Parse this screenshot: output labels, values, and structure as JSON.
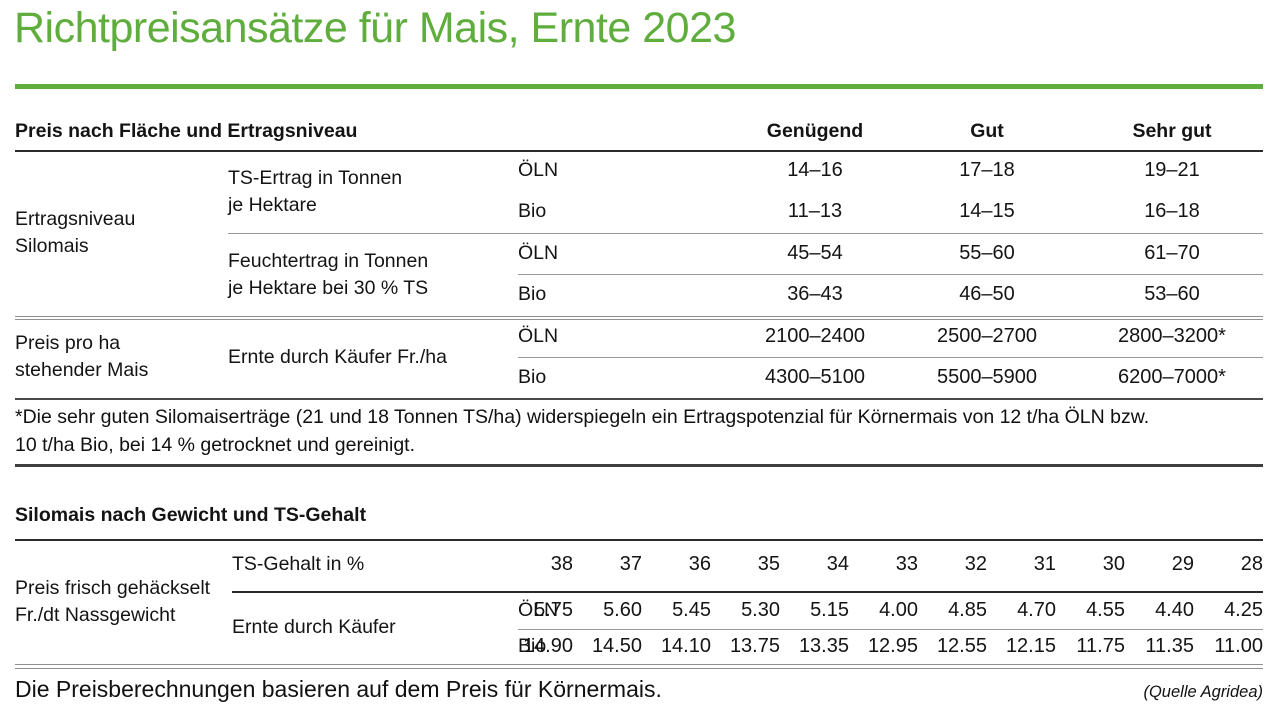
{
  "title": "Richtpreisansätze für Mais, Ernte 2023",
  "accent_color": "#5fad3d",
  "table1": {
    "header": "Preis nach Fläche und Ertragsniveau",
    "quality_headers": [
      "Genügend",
      "Gut",
      "Sehr gut"
    ],
    "groups": [
      {
        "row_label_lines": [
          "Ertragsniveau",
          "Silomais"
        ],
        "blocks": [
          {
            "measure_lines": [
              "TS-Ertrag in Tonnen",
              "je Hektare"
            ],
            "rows": [
              {
                "system": "ÖLN",
                "values": [
                  "14–16",
                  "17–18",
                  "19–21"
                ]
              },
              {
                "system": "Bio",
                "values": [
                  "11–13",
                  "14–15",
                  "16–18"
                ]
              }
            ]
          },
          {
            "measure_lines": [
              "Feuchtertrag in Tonnen",
              "je Hektare bei 30 % TS"
            ],
            "rows": [
              {
                "system": "ÖLN",
                "values": [
                  "45–54",
                  "55–60",
                  "61–70"
                ]
              },
              {
                "system": "Bio",
                "values": [
                  "36–43",
                  "46–50",
                  "53–60"
                ]
              }
            ]
          }
        ]
      },
      {
        "row_label_lines": [
          "Preis pro ha",
          "stehender Mais"
        ],
        "blocks": [
          {
            "measure_lines": [
              "Ernte durch Käufer Fr./ha"
            ],
            "rows": [
              {
                "system": "ÖLN",
                "values": [
                  "2100–2400",
                  "2500–2700",
                  "2800–3200*"
                ]
              },
              {
                "system": "Bio",
                "values": [
                  "4300–5100",
                  "5500–5900",
                  "6200–7000*"
                ]
              }
            ]
          }
        ]
      }
    ],
    "footnote_lines": [
      "*Die sehr guten Silomaiserträge (21 und 18 Tonnen TS/ha) widerspiegeln ein Ertragspotenzial für Körnermais von 12 t/ha ÖLN bzw.",
      "10 t/ha Bio, bei 14 % getrocknet und gereinigt."
    ]
  },
  "table2": {
    "header": "Silomais nach Gewicht und TS-Gehalt",
    "ts_row": {
      "label": "TS-Gehalt in %",
      "values": [
        "38",
        "37",
        "36",
        "35",
        "34",
        "33",
        "32",
        "31",
        "30",
        "29",
        "28"
      ]
    },
    "row_label_lines": [
      "Preis frisch gehäckselt",
      "Fr./dt Nassgewicht"
    ],
    "measure_label": "Ernte durch Käufer",
    "rows": [
      {
        "system": "ÖLN",
        "values": [
          "5.75",
          "5.60",
          "5.45",
          "5.30",
          "5.15",
          "4.00",
          "4.85",
          "4.70",
          "4.55",
          "4.40",
          "4.25"
        ]
      },
      {
        "system": "Bio",
        "values": [
          "14.90",
          "14.50",
          "14.10",
          "13.75",
          "13.35",
          "12.95",
          "12.55",
          "12.15",
          "11.75",
          "11.35",
          "11.00"
        ]
      }
    ]
  },
  "footer": {
    "note": "Die Preisberechnungen basieren auf dem Preis für Körnermais.",
    "source": "(Quelle Agridea)"
  }
}
